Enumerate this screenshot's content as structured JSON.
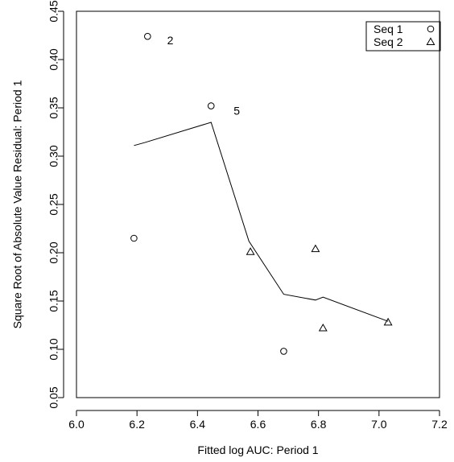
{
  "chart_data": {
    "type": "scatter",
    "title": "",
    "xlabel": "Fitted log AUC: Period 1",
    "ylabel": "Square Root of Absolute Value Residual: Period 1",
    "xlim": [
      6.0,
      7.2
    ],
    "ylim": [
      0.05,
      0.45
    ],
    "x_ticks": [
      6.0,
      6.2,
      6.4,
      6.6,
      6.8,
      7.0,
      7.2
    ],
    "x_tick_labels": [
      "6.0",
      "6.2",
      "6.4",
      "6.6",
      "6.8",
      "7.0",
      "7.2"
    ],
    "y_ticks": [
      0.05,
      0.1,
      0.15,
      0.2,
      0.25,
      0.3,
      0.35,
      0.4,
      0.45
    ],
    "y_tick_labels": [
      "0.05",
      "0.10",
      "0.15",
      "0.20",
      "0.25",
      "0.30",
      "0.35",
      "0.40",
      "0.45"
    ],
    "grid": false,
    "legend_position": "top-right",
    "series": [
      {
        "name": "Seq 1",
        "marker": "circle",
        "color": "#000000",
        "points": [
          {
            "x": 6.19,
            "y": 0.215
          },
          {
            "x": 6.235,
            "y": 0.424
          },
          {
            "x": 6.445,
            "y": 0.352
          },
          {
            "x": 6.685,
            "y": 0.098
          }
        ]
      },
      {
        "name": "Seq 2",
        "marker": "triangle",
        "color": "#000000",
        "points": [
          {
            "x": 6.575,
            "y": 0.201
          },
          {
            "x": 6.79,
            "y": 0.204
          },
          {
            "x": 6.815,
            "y": 0.122
          },
          {
            "x": 7.03,
            "y": 0.128
          }
        ]
      }
    ],
    "smooth_line": {
      "x": [
        6.19,
        6.225,
        6.445,
        6.57,
        6.685,
        6.79,
        6.815,
        7.03
      ],
      "y": [
        0.311,
        0.314,
        0.335,
        0.212,
        0.157,
        0.151,
        0.154,
        0.129
      ]
    },
    "point_labels": [
      {
        "text": "2",
        "x": 6.31,
        "y": 0.42
      },
      {
        "text": "5",
        "x": 6.53,
        "y": 0.347
      }
    ]
  },
  "colors": {
    "background": "#ffffff",
    "foreground": "#000000"
  }
}
